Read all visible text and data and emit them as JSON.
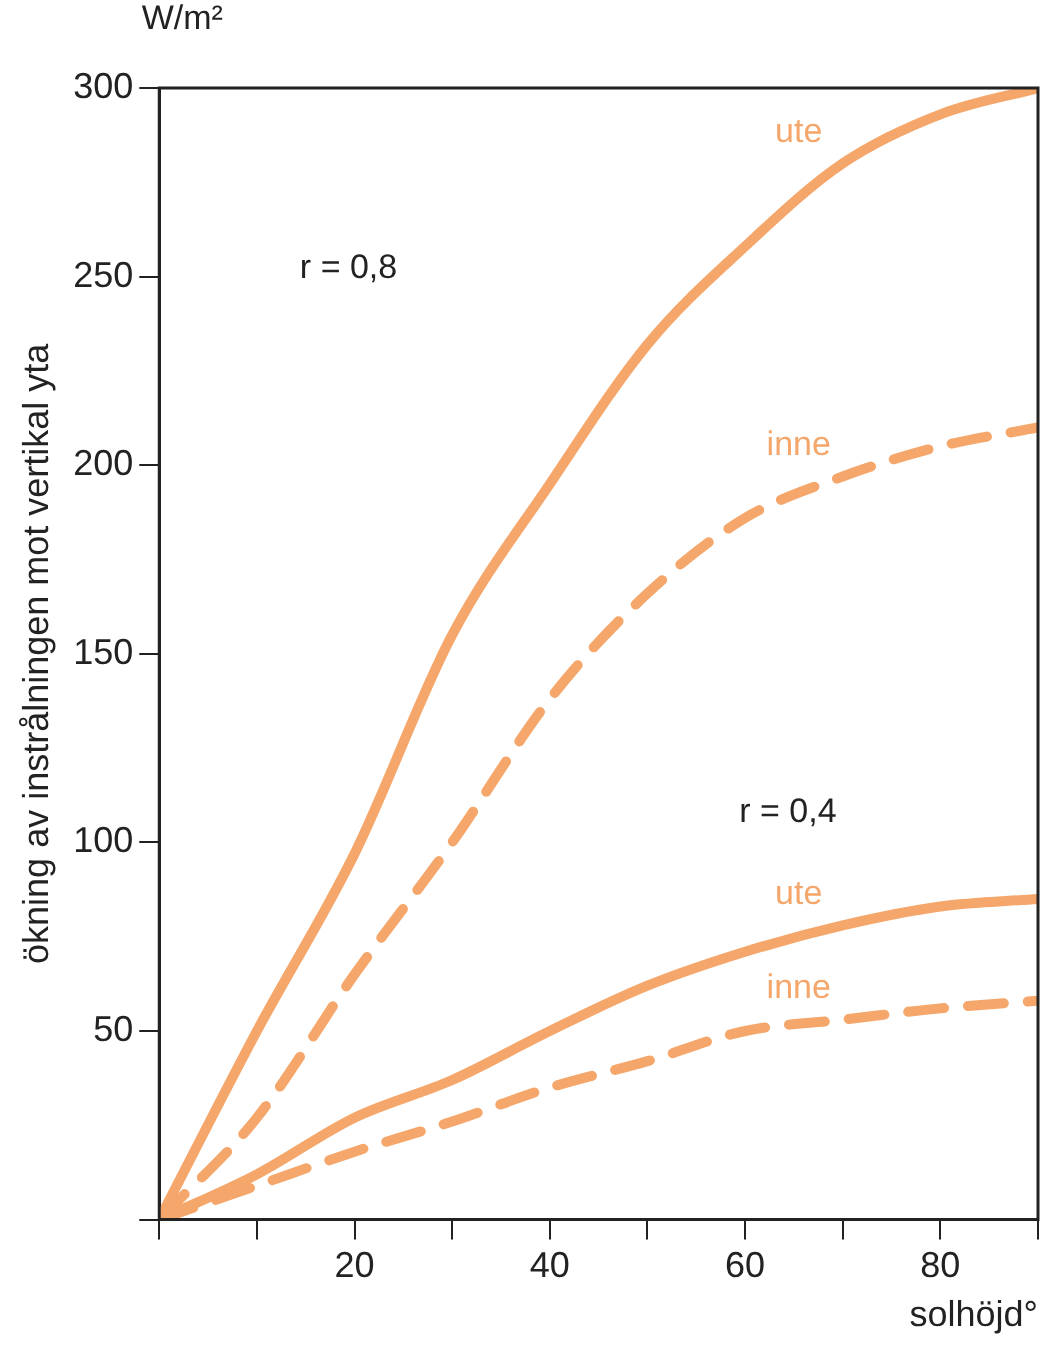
{
  "chart_data": {
    "type": "line",
    "ylabel": "ökning av instrålningen mot vertikal yta",
    "xlabel": "solhöjd°",
    "x": [
      0,
      10,
      20,
      30,
      40,
      50,
      60,
      70,
      80,
      90
    ],
    "series": [
      {
        "name": "ute",
        "color": "#f5a66a",
        "line_style": "solid",
        "values": [
          0,
          50,
          97,
          155,
          195,
          232,
          258,
          280,
          293,
          300
        ]
      },
      {
        "name": "inne",
        "color": "#f5a66a",
        "line_style": "dashed",
        "values": [
          0,
          27,
          65,
          100,
          138,
          166,
          186,
          197,
          205,
          210
        ]
      },
      {
        "name": "ute",
        "color": "#f5a66a",
        "line_style": "solid",
        "values": [
          0,
          12,
          27,
          37,
          50,
          62,
          71,
          78,
          83,
          85
        ]
      },
      {
        "name": "inne",
        "color": "#f5a66a",
        "line_style": "dashed",
        "values": [
          0,
          9,
          18,
          26,
          35,
          42,
          50,
          53,
          56,
          58
        ]
      }
    ],
    "xlim": [
      0,
      90
    ],
    "ylim": [
      0,
      300
    ],
    "xticks": [
      {
        "value": 0,
        "label": null
      },
      {
        "value": 10,
        "label": null
      },
      20,
      {
        "value": 30,
        "label": null
      },
      40,
      {
        "value": 50,
        "label": null
      },
      60,
      {
        "value": 70,
        "label": null
      },
      80,
      {
        "value": 90,
        "label": null
      }
    ],
    "yticks": [
      {
        "value": 0,
        "label": null
      },
      50,
      100,
      150,
      200,
      250,
      300
    ],
    "grid": false,
    "legend": false,
    "marker": "none",
    "annotations": [
      "W/m²",
      "r = 0,8",
      "r = 0,4"
    ]
  }
}
